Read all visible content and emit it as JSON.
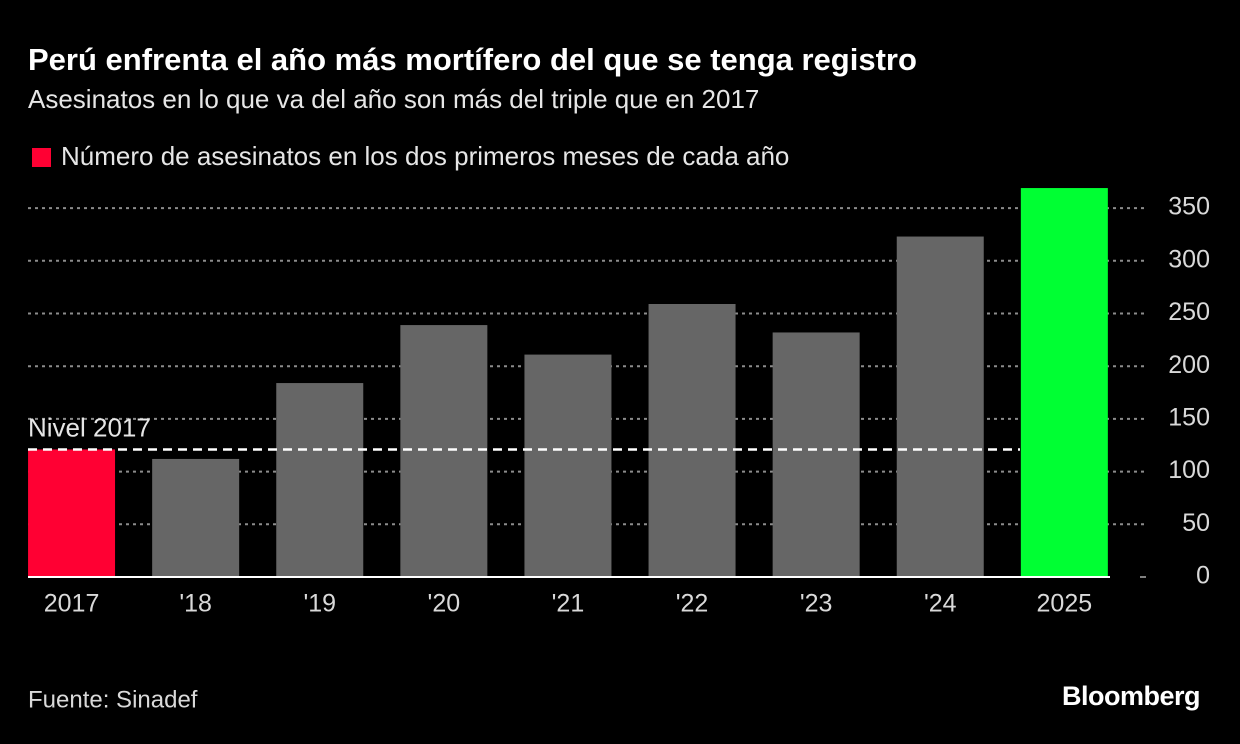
{
  "chart_data": {
    "type": "bar",
    "title": "Perú enfrenta el año más mortífero del que se tenga registro",
    "subtitle": "Asesinatos en lo que va del año son más del triple que en 2017",
    "categories": [
      "2017",
      "'18",
      "'19",
      "'20",
      "'21",
      "'22",
      "'23",
      "'24",
      "2025"
    ],
    "series": [
      {
        "name": "Número de asesinatos en los dos primeros meses de cada año",
        "color": "#ff0033",
        "values": [
          121,
          112,
          184,
          239,
          211,
          259,
          232,
          323,
          369
        ],
        "colors": [
          "#ff0033",
          "#666666",
          "#666666",
          "#666666",
          "#666666",
          "#666666",
          "#666666",
          "#666666",
          "#00ff33"
        ]
      }
    ],
    "reference_line": {
      "label": "Nivel 2017",
      "value": 121
    },
    "ylim": [
      0,
      370
    ],
    "yticks": [
      0,
      50,
      100,
      150,
      200,
      250,
      300,
      350
    ],
    "grid": true,
    "source": "Fuente: Sinadef",
    "brand": "Bloomberg"
  }
}
